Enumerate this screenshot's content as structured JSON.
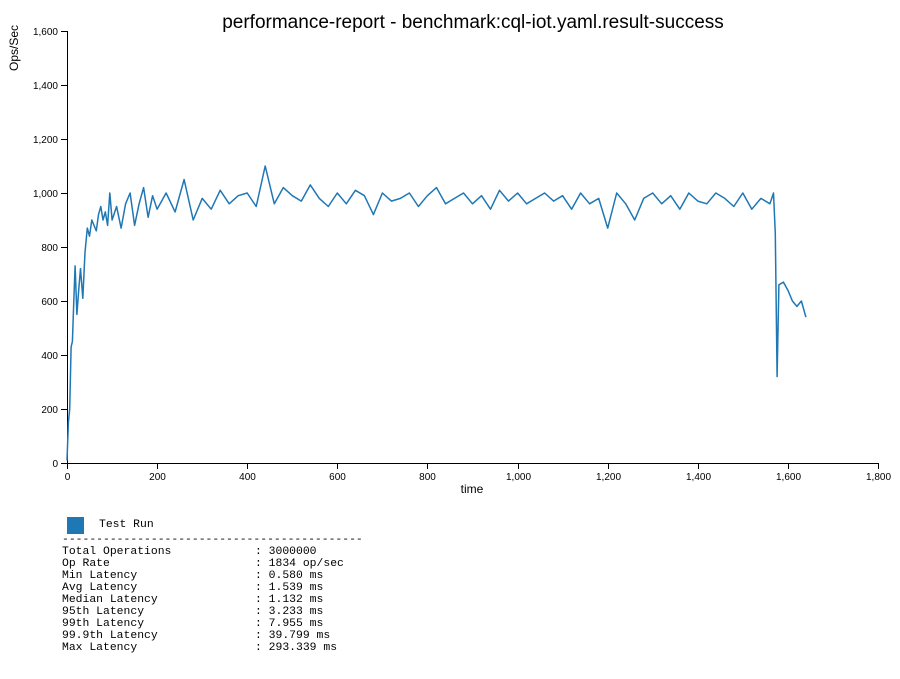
{
  "chart_data": {
    "type": "line",
    "title": "performance-report - benchmark:cql-iot.yaml.result-success",
    "xlabel": "time",
    "ylabel": "Ops/Sec",
    "xlim": [
      0,
      1800
    ],
    "ylim": [
      0,
      1600
    ],
    "x_ticks": [
      "0",
      "200",
      "400",
      "600",
      "800",
      "1,000",
      "1,200",
      "1,400",
      "1,600",
      "1,800"
    ],
    "y_ticks": [
      "0",
      "200",
      "400",
      "600",
      "800",
      "1,000",
      "1,200",
      "1,400",
      "1,600"
    ],
    "grid": false,
    "series": [
      {
        "name": "Test Run",
        "color": "#1f77b4",
        "x": [
          0,
          3,
          6,
          9,
          12,
          15,
          18,
          22,
          26,
          30,
          35,
          40,
          45,
          50,
          55,
          60,
          65,
          70,
          75,
          80,
          85,
          90,
          95,
          100,
          110,
          120,
          130,
          140,
          150,
          160,
          170,
          180,
          190,
          200,
          220,
          240,
          260,
          280,
          300,
          320,
          340,
          360,
          380,
          400,
          420,
          440,
          460,
          480,
          500,
          520,
          540,
          560,
          580,
          600,
          620,
          640,
          660,
          680,
          700,
          720,
          740,
          760,
          780,
          800,
          820,
          840,
          860,
          880,
          900,
          920,
          940,
          960,
          980,
          1000,
          1020,
          1040,
          1060,
          1080,
          1100,
          1120,
          1140,
          1160,
          1180,
          1200,
          1220,
          1240,
          1260,
          1280,
          1300,
          1320,
          1340,
          1360,
          1380,
          1400,
          1420,
          1440,
          1460,
          1480,
          1500,
          1520,
          1540,
          1560,
          1568,
          1572,
          1576,
          1580,
          1590,
          1600,
          1610,
          1620,
          1630,
          1640
        ],
        "values": [
          10,
          150,
          200,
          430,
          450,
          600,
          730,
          550,
          640,
          720,
          610,
          780,
          870,
          840,
          900,
          880,
          860,
          920,
          950,
          900,
          930,
          880,
          1000,
          900,
          950,
          870,
          960,
          1000,
          880,
          960,
          1020,
          910,
          990,
          940,
          1000,
          930,
          1050,
          900,
          980,
          940,
          1010,
          960,
          990,
          1000,
          950,
          1100,
          960,
          1020,
          990,
          970,
          1030,
          980,
          950,
          1000,
          960,
          1010,
          990,
          920,
          1000,
          970,
          980,
          1000,
          950,
          990,
          1020,
          960,
          980,
          1000,
          960,
          990,
          940,
          1010,
          970,
          1000,
          960,
          980,
          1000,
          970,
          990,
          940,
          1000,
          960,
          980,
          870,
          1000,
          960,
          900,
          980,
          1000,
          960,
          990,
          940,
          1000,
          970,
          960,
          1000,
          980,
          950,
          1000,
          940,
          980,
          960,
          1000,
          850,
          320,
          660,
          670,
          640,
          600,
          580,
          600,
          540
        ]
      }
    ]
  },
  "legend": {
    "series_name": "Test Run",
    "swatch_color": "#1f77b4",
    "divider": "--------------------------------------------",
    "stats": [
      {
        "label": "Total Operations",
        "value": ": 3000000"
      },
      {
        "label": "Op Rate",
        "value": ": 1834 op/sec"
      },
      {
        "label": "Min Latency",
        "value": ": 0.580 ms"
      },
      {
        "label": "Avg Latency",
        "value": ": 1.539 ms"
      },
      {
        "label": "Median Latency",
        "value": ": 1.132 ms"
      },
      {
        "label": "95th Latency",
        "value": ": 3.233 ms"
      },
      {
        "label": "99th Latency",
        "value": ": 7.955 ms"
      },
      {
        "label": "99.9th Latency",
        "value": ": 39.799 ms"
      },
      {
        "label": "Max Latency",
        "value": ": 293.339 ms"
      }
    ]
  }
}
